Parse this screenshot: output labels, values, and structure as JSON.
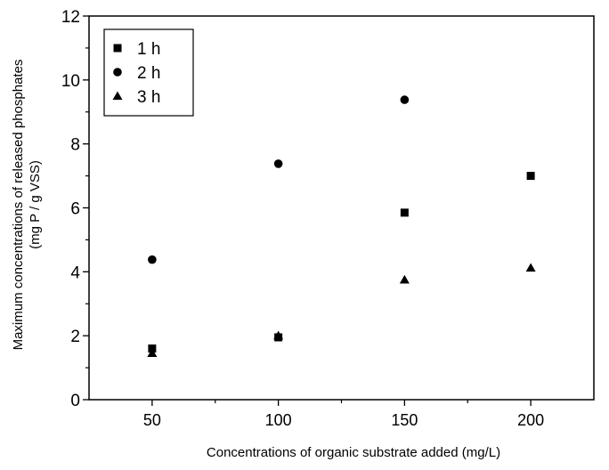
{
  "chart_data": {
    "type": "scatter",
    "title": "",
    "xlabel": "Concentrations of organic substrate added (mg/L)",
    "ylabel_line1": "Maximum concentrations of released phosphates",
    "ylabel_line2": "(mg P / g VSS)",
    "xlim": [
      25,
      225
    ],
    "ylim": [
      0,
      12
    ],
    "x_ticks": [
      50,
      100,
      150,
      200
    ],
    "x_tick_labels": [
      "50",
      "100",
      "150",
      "200"
    ],
    "y_ticks": [
      0,
      2,
      4,
      6,
      8,
      10,
      12
    ],
    "y_tick_labels": [
      "0",
      "2",
      "4",
      "6",
      "8",
      "10",
      "12"
    ],
    "grid": false,
    "legend_position": "top-left",
    "series": [
      {
        "name": "1 h",
        "marker": "square",
        "x": [
          50,
          100,
          150,
          200
        ],
        "y": [
          1.6,
          1.95,
          5.85,
          7.0
        ]
      },
      {
        "name": "2 h",
        "marker": "circle",
        "x": [
          50,
          100,
          150
        ],
        "y": [
          4.38,
          7.38,
          9.38
        ]
      },
      {
        "name": "3 h",
        "marker": "triangle",
        "x": [
          50,
          100,
          150,
          200
        ],
        "y": [
          1.45,
          2.0,
          3.75,
          4.12
        ]
      }
    ],
    "colors": {
      "marker": "#000000",
      "axis": "#000000",
      "background": "#ffffff"
    }
  }
}
